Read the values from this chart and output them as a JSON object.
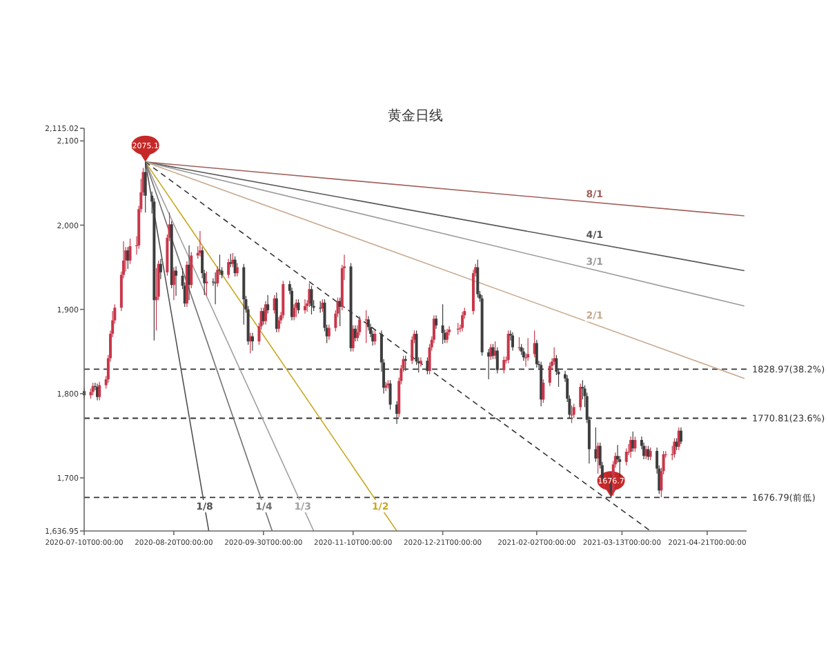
{
  "chart_data": {
    "type": "candlestick",
    "title": "黄金日线",
    "xlim": [
      "2020-07-10",
      "2021-05-09"
    ],
    "ylim": [
      1636.95,
      2115.02
    ],
    "xticks": [
      {
        "value": "2020-07-10",
        "label": "2020-07-10T00:00:00"
      },
      {
        "value": "2020-08-20",
        "label": "2020-08-20T00:00:00"
      },
      {
        "value": "2020-09-30",
        "label": "2020-09-30T00:00:00"
      },
      {
        "value": "2020-11-10",
        "label": "2020-11-10T00:00:00"
      },
      {
        "value": "2020-12-21",
        "label": "2020-12-21T00:00:00"
      },
      {
        "value": "2021-02-02",
        "label": "2021-02-02T00:00:00"
      },
      {
        "value": "2021-03-13",
        "label": "2021-03-13T00:00:00"
      },
      {
        "value": "2021-04-21",
        "label": "2021-04-21T00:00:00"
      }
    ],
    "yticks": [
      {
        "value": 1636.95,
        "label": "1,636.95"
      },
      {
        "value": 1700,
        "label": "1,700"
      },
      {
        "value": 1800,
        "label": "1,800"
      },
      {
        "value": 1900,
        "label": "1,900"
      },
      {
        "value": 2000,
        "label": "2,000"
      },
      {
        "value": 2100,
        "label": "2,100"
      },
      {
        "value": 2115.02,
        "label": "2,115.02"
      }
    ],
    "x": [
      "2020-07-10",
      "2020-07-13",
      "2020-07-14",
      "2020-07-15",
      "2020-07-16",
      "2020-07-17",
      "2020-07-20",
      "2020-07-21",
      "2020-07-22",
      "2020-07-23",
      "2020-07-24",
      "2020-07-27",
      "2020-07-28",
      "2020-07-29",
      "2020-07-30",
      "2020-07-31",
      "2020-08-03",
      "2020-08-04",
      "2020-08-05",
      "2020-08-06",
      "2020-08-07",
      "2020-08-10",
      "2020-08-11",
      "2020-08-12",
      "2020-08-13",
      "2020-08-14",
      "2020-08-17",
      "2020-08-18",
      "2020-08-19",
      "2020-08-20",
      "2020-08-21",
      "2020-08-24",
      "2020-08-25",
      "2020-08-26",
      "2020-08-27",
      "2020-08-28",
      "2020-08-31",
      "2020-09-01",
      "2020-09-02",
      "2020-09-03",
      "2020-09-04",
      "2020-09-07",
      "2020-09-08",
      "2020-09-09",
      "2020-09-10",
      "2020-09-11",
      "2020-09-14",
      "2020-09-15",
      "2020-09-16",
      "2020-09-17",
      "2020-09-18",
      "2020-09-21",
      "2020-09-22",
      "2020-09-23",
      "2020-09-24",
      "2020-09-25",
      "2020-09-28",
      "2020-09-29",
      "2020-09-30",
      "2020-10-01",
      "2020-10-02",
      "2020-10-05",
      "2020-10-06",
      "2020-10-07",
      "2020-10-08",
      "2020-10-09",
      "2020-10-12",
      "2020-10-13",
      "2020-10-14",
      "2020-10-15",
      "2020-10-16",
      "2020-10-19",
      "2020-10-20",
      "2020-10-21",
      "2020-10-22",
      "2020-10-23",
      "2020-10-26",
      "2020-10-27",
      "2020-10-28",
      "2020-10-29",
      "2020-10-30",
      "2020-11-02",
      "2020-11-03",
      "2020-11-04",
      "2020-11-05",
      "2020-11-06",
      "2020-11-09",
      "2020-11-10",
      "2020-11-11",
      "2020-11-12",
      "2020-11-13",
      "2020-11-16",
      "2020-11-17",
      "2020-11-18",
      "2020-11-19",
      "2020-11-20",
      "2020-11-23",
      "2020-11-24",
      "2020-11-25",
      "2020-11-26",
      "2020-11-27",
      "2020-11-30",
      "2020-12-01",
      "2020-12-02",
      "2020-12-03",
      "2020-12-04",
      "2020-12-07",
      "2020-12-08",
      "2020-12-09",
      "2020-12-10",
      "2020-12-11",
      "2020-12-14",
      "2020-12-15",
      "2020-12-16",
      "2020-12-17",
      "2020-12-18",
      "2020-12-21",
      "2020-12-22",
      "2020-12-23",
      "2020-12-24",
      "2020-12-28",
      "2020-12-29",
      "2020-12-30",
      "2020-12-31",
      "2021-01-04",
      "2021-01-05",
      "2021-01-06",
      "2021-01-07",
      "2021-01-08",
      "2021-01-11",
      "2021-01-12",
      "2021-01-13",
      "2021-01-14",
      "2021-01-15",
      "2021-01-18",
      "2021-01-19",
      "2021-01-20",
      "2021-01-21",
      "2021-01-22",
      "2021-01-25",
      "2021-01-26",
      "2021-01-27",
      "2021-01-28",
      "2021-01-29",
      "2021-02-01",
      "2021-02-02",
      "2021-02-03",
      "2021-02-04",
      "2021-02-05",
      "2021-02-08",
      "2021-02-09",
      "2021-02-10",
      "2021-02-11",
      "2021-02-12",
      "2021-02-15",
      "2021-02-16",
      "2021-02-17",
      "2021-02-18",
      "2021-02-19",
      "2021-02-22",
      "2021-02-23",
      "2021-02-24",
      "2021-02-25",
      "2021-02-26",
      "2021-03-01",
      "2021-03-02",
      "2021-03-03",
      "2021-03-04",
      "2021-03-05",
      "2021-03-08",
      "2021-03-09",
      "2021-03-10",
      "2021-03-11",
      "2021-03-12",
      "2021-03-15",
      "2021-03-16",
      "2021-03-17",
      "2021-03-18",
      "2021-03-19",
      "2021-03-22",
      "2021-03-23",
      "2021-03-24",
      "2021-03-25",
      "2021-03-26",
      "2021-03-29",
      "2021-03-30",
      "2021-03-31",
      "2021-04-01",
      "2021-04-02",
      "2021-04-05",
      "2021-04-06",
      "2021-04-07",
      "2021-04-08",
      "2021-04-09"
    ],
    "ohlc": [
      [
        1803,
        1807,
        1794,
        1798
      ],
      [
        1798,
        1806,
        1794,
        1802
      ],
      [
        1802,
        1813,
        1798,
        1809
      ],
      [
        1809,
        1813,
        1804,
        1808
      ],
      [
        1808,
        1812,
        1792,
        1796
      ],
      [
        1796,
        1814,
        1792,
        1810
      ],
      [
        1810,
        1821,
        1806,
        1817
      ],
      [
        1817,
        1846,
        1813,
        1842
      ],
      [
        1842,
        1875,
        1838,
        1871
      ],
      [
        1871,
        1898,
        1867,
        1887
      ],
      [
        1887,
        1906,
        1883,
        1902
      ],
      [
        1902,
        1945,
        1898,
        1941
      ],
      [
        1941,
        1981,
        1937,
        1958
      ],
      [
        1958,
        1974,
        1945,
        1970
      ],
      [
        1970,
        1974,
        1948,
        1958
      ],
      [
        1958,
        1984,
        1954,
        1975
      ],
      [
        1975,
        1987,
        1965,
        1976
      ],
      [
        1976,
        2023,
        1972,
        2019
      ],
      [
        2019,
        2055,
        2015,
        2039
      ],
      [
        2039,
        2068,
        2035,
        2063
      ],
      [
        2063,
        2075.14,
        2015,
        2035
      ],
      [
        2035,
        2040,
        2014,
        2028
      ],
      [
        2028,
        2032,
        1863,
        1911
      ],
      [
        1911,
        1949,
        1875,
        1915
      ],
      [
        1915,
        1958,
        1911,
        1954
      ],
      [
        1954,
        1960,
        1936,
        1944
      ],
      [
        1944,
        1989,
        1940,
        1985
      ],
      [
        1985,
        2015,
        1981,
        2001
      ],
      [
        2001,
        2005,
        1925,
        1929
      ],
      [
        1929,
        1950,
        1911,
        1946
      ],
      [
        1946,
        1951,
        1916,
        1940
      ],
      [
        1940,
        1949,
        1924,
        1928
      ],
      [
        1928,
        1932,
        1903,
        1907
      ],
      [
        1907,
        1957,
        1903,
        1953
      ],
      [
        1953,
        1976,
        1911,
        1929
      ],
      [
        1929,
        1968,
        1925,
        1964
      ],
      [
        1964,
        1975,
        1960,
        1967
      ],
      [
        1967,
        1993,
        1963,
        1970
      ],
      [
        1970,
        1974,
        1937,
        1943
      ],
      [
        1943,
        1947,
        1917,
        1931
      ],
      [
        1931,
        1945,
        1916,
        1933
      ],
      [
        1933,
        1937,
        1928,
        1932
      ],
      [
        1932,
        1944,
        1906,
        1931
      ],
      [
        1931,
        1951,
        1927,
        1947
      ],
      [
        1947,
        1965,
        1941,
        1946
      ],
      [
        1946,
        1950,
        1937,
        1941
      ],
      [
        1941,
        1960,
        1937,
        1956
      ],
      [
        1956,
        1966,
        1950,
        1954
      ],
      [
        1954,
        1967,
        1950,
        1959
      ],
      [
        1959,
        1963,
        1939,
        1943
      ],
      [
        1943,
        1955,
        1939,
        1950
      ],
      [
        1950,
        1954,
        1882,
        1912
      ],
      [
        1912,
        1916,
        1896,
        1900
      ],
      [
        1900,
        1904,
        1858,
        1862
      ],
      [
        1862,
        1872,
        1848,
        1868
      ],
      [
        1868,
        1872,
        1851,
        1862
      ],
      [
        1862,
        1884,
        1858,
        1880
      ],
      [
        1880,
        1902,
        1876,
        1898
      ],
      [
        1898,
        1902,
        1882,
        1886
      ],
      [
        1886,
        1910,
        1882,
        1906
      ],
      [
        1906,
        1917,
        1895,
        1899
      ],
      [
        1899,
        1917,
        1895,
        1913
      ],
      [
        1913,
        1920,
        1873,
        1877
      ],
      [
        1877,
        1891,
        1873,
        1887
      ],
      [
        1887,
        1897,
        1883,
        1893
      ],
      [
        1893,
        1934,
        1889,
        1930
      ],
      [
        1930,
        1934,
        1918,
        1922
      ],
      [
        1922,
        1926,
        1887,
        1891
      ],
      [
        1891,
        1906,
        1887,
        1902
      ],
      [
        1902,
        1912,
        1891,
        1908
      ],
      [
        1908,
        1912,
        1895,
        1899
      ],
      [
        1899,
        1912,
        1895,
        1904
      ],
      [
        1904,
        1911,
        1897,
        1907
      ],
      [
        1907,
        1931,
        1903,
        1924
      ],
      [
        1924,
        1928,
        1894,
        1904
      ],
      [
        1904,
        1911,
        1898,
        1902
      ],
      [
        1902,
        1910,
        1896,
        1901
      ],
      [
        1901,
        1912,
        1897,
        1908
      ],
      [
        1908,
        1912,
        1874,
        1878
      ],
      [
        1878,
        1882,
        1860,
        1868
      ],
      [
        1868,
        1882,
        1864,
        1878
      ],
      [
        1878,
        1899,
        1874,
        1895
      ],
      [
        1895,
        1914,
        1891,
        1910
      ],
      [
        1910,
        1914,
        1880,
        1903
      ],
      [
        1903,
        1953,
        1899,
        1949
      ],
      [
        1949,
        1965,
        1935,
        1951
      ],
      [
        1951,
        1955,
        1850,
        1854
      ],
      [
        1854,
        1881,
        1850,
        1877
      ],
      [
        1877,
        1881,
        1862,
        1866
      ],
      [
        1866,
        1881,
        1862,
        1873
      ],
      [
        1873,
        1892,
        1869,
        1888
      ],
      [
        1888,
        1899,
        1860,
        1888
      ],
      [
        1888,
        1892,
        1875,
        1879
      ],
      [
        1879,
        1883,
        1867,
        1871
      ],
      [
        1871,
        1875,
        1857,
        1862
      ],
      [
        1862,
        1875,
        1858,
        1871
      ],
      [
        1871,
        1875,
        1826,
        1837
      ],
      [
        1837,
        1841,
        1800,
        1807
      ],
      [
        1807,
        1814,
        1803,
        1810
      ],
      [
        1810,
        1816,
        1806,
        1812
      ],
      [
        1812,
        1816,
        1781,
        1787
      ],
      [
        1787,
        1791,
        1764,
        1776
      ],
      [
        1776,
        1819,
        1772,
        1815
      ],
      [
        1815,
        1834,
        1811,
        1830
      ],
      [
        1830,
        1845,
        1826,
        1841
      ],
      [
        1841,
        1845,
        1827,
        1839
      ],
      [
        1839,
        1868,
        1835,
        1864
      ],
      [
        1864,
        1875,
        1860,
        1871
      ],
      [
        1871,
        1875,
        1834,
        1838
      ],
      [
        1838,
        1843,
        1825,
        1836
      ],
      [
        1836,
        1843,
        1832,
        1839
      ],
      [
        1839,
        1843,
        1823,
        1827
      ],
      [
        1827,
        1859,
        1823,
        1855
      ],
      [
        1855,
        1868,
        1851,
        1864
      ],
      [
        1864,
        1893,
        1860,
        1889
      ],
      [
        1889,
        1893,
        1877,
        1881
      ],
      [
        1881,
        1906,
        1859,
        1872
      ],
      [
        1872,
        1876,
        1860,
        1864
      ],
      [
        1864,
        1877,
        1860,
        1873
      ],
      [
        1873,
        1880,
        1869,
        1876
      ],
      [
        1876,
        1884,
        1870,
        1877
      ],
      [
        1877,
        1882,
        1873,
        1878
      ],
      [
        1878,
        1897,
        1874,
        1893
      ],
      [
        1893,
        1902,
        1889,
        1898
      ],
      [
        1898,
        1947,
        1894,
        1943
      ],
      [
        1943,
        1954,
        1939,
        1950
      ],
      [
        1950,
        1959,
        1914,
        1918
      ],
      [
        1918,
        1922,
        1909,
        1913
      ],
      [
        1913,
        1917,
        1845,
        1849
      ],
      [
        1849,
        1853,
        1817,
        1844
      ],
      [
        1844,
        1859,
        1840,
        1855
      ],
      [
        1855,
        1859,
        1841,
        1845
      ],
      [
        1845,
        1862,
        1841,
        1851
      ],
      [
        1851,
        1855,
        1824,
        1828
      ],
      [
        1828,
        1844,
        1824,
        1840
      ],
      [
        1840,
        1844,
        1836,
        1840
      ],
      [
        1840,
        1875,
        1836,
        1871
      ],
      [
        1871,
        1875,
        1863,
        1869
      ],
      [
        1869,
        1873,
        1851,
        1855
      ],
      [
        1855,
        1867,
        1851,
        1855
      ],
      [
        1855,
        1859,
        1846,
        1850
      ],
      [
        1850,
        1854,
        1839,
        1843
      ],
      [
        1843,
        1848,
        1832,
        1843
      ],
      [
        1843,
        1866,
        1839,
        1847
      ],
      [
        1847,
        1875,
        1843,
        1860
      ],
      [
        1860,
        1864,
        1831,
        1835
      ],
      [
        1835,
        1839,
        1830,
        1834
      ],
      [
        1834,
        1838,
        1785,
        1793
      ],
      [
        1793,
        1817,
        1789,
        1813
      ],
      [
        1813,
        1837,
        1809,
        1833
      ],
      [
        1833,
        1842,
        1829,
        1838
      ],
      [
        1838,
        1855,
        1834,
        1842
      ],
      [
        1842,
        1846,
        1822,
        1826
      ],
      [
        1826,
        1830,
        1808,
        1823
      ],
      [
        1823,
        1827,
        1814,
        1818
      ],
      [
        1818,
        1822,
        1790,
        1794
      ],
      [
        1794,
        1798,
        1771,
        1775
      ],
      [
        1775,
        1786,
        1765,
        1775
      ],
      [
        1775,
        1788,
        1771,
        1784
      ],
      [
        1784,
        1812,
        1780,
        1808
      ],
      [
        1808,
        1816,
        1793,
        1806
      ],
      [
        1806,
        1810,
        1784,
        1797
      ],
      [
        1797,
        1801,
        1765,
        1769
      ],
      [
        1769,
        1773,
        1717,
        1734
      ],
      [
        1734,
        1760,
        1719,
        1723
      ],
      [
        1723,
        1742,
        1705,
        1738
      ],
      [
        1738,
        1742,
        1711,
        1715
      ],
      [
        1715,
        1719,
        1694,
        1698
      ],
      [
        1698,
        1704,
        1687,
        1700
      ],
      [
        1700,
        1704,
        1676.79,
        1683
      ],
      [
        1683,
        1720,
        1679,
        1716
      ],
      [
        1716,
        1730,
        1712,
        1726
      ],
      [
        1726,
        1739,
        1718,
        1722
      ],
      [
        1722,
        1726,
        1699,
        1719
      ],
      [
        1719,
        1735,
        1715,
        1731
      ],
      [
        1731,
        1740,
        1727,
        1731
      ],
      [
        1731,
        1749,
        1724,
        1745
      ],
      [
        1745,
        1755,
        1731,
        1735
      ],
      [
        1735,
        1749,
        1731,
        1745
      ],
      [
        1745,
        1749,
        1734,
        1738
      ],
      [
        1738,
        1742,
        1722,
        1726
      ],
      [
        1726,
        1738,
        1722,
        1734
      ],
      [
        1734,
        1738,
        1721,
        1725
      ],
      [
        1725,
        1736,
        1721,
        1732
      ],
      [
        1732,
        1736,
        1705,
        1711
      ],
      [
        1711,
        1715,
        1681,
        1685
      ],
      [
        1685,
        1712,
        1677,
        1708
      ],
      [
        1708,
        1732,
        1704,
        1728
      ],
      [
        1728,
        1732,
        1724,
        1728
      ],
      [
        1728,
        1738,
        1721,
        1728
      ],
      [
        1728,
        1747,
        1724,
        1743
      ],
      [
        1743,
        1747,
        1733,
        1737
      ],
      [
        1737,
        1760,
        1733,
        1756
      ],
      [
        1756,
        1760,
        1740,
        1743
      ]
    ],
    "colors": [
      "#3d3d3d",
      "#c8374a",
      "#c8374a",
      "#3d3d3d",
      "#3d3d3d",
      "#c8374a",
      "#c8374a",
      "#c8374a",
      "#c8374a",
      "#c8374a",
      "#c8374a",
      "#c8374a",
      "#c8374a",
      "#c8374a",
      "#3d3d3d",
      "#c8374a",
      "#c8374a",
      "#c8374a",
      "#c8374a",
      "#c8374a",
      "#3d3d3d",
      "#3d3d3d",
      "#3d3d3d",
      "#c8374a",
      "#c8374a",
      "#3d3d3d",
      "#c8374a",
      "#c8374a",
      "#3d3d3d",
      "#c8374a",
      "#3d3d3d",
      "#3d3d3d",
      "#3d3d3d",
      "#c8374a",
      "#3d3d3d",
      "#c8374a",
      "#c8374a",
      "#c8374a",
      "#3d3d3d",
      "#3d3d3d",
      "#c8374a",
      "#3d3d3d",
      "#3d3d3d",
      "#c8374a",
      "#3d3d3d",
      "#3d3d3d",
      "#c8374a",
      "#3d3d3d",
      "#c8374a",
      "#3d3d3d",
      "#c8374a",
      "#3d3d3d",
      "#3d3d3d",
      "#3d3d3d",
      "#c8374a",
      "#3d3d3d",
      "#c8374a",
      "#c8374a",
      "#3d3d3d",
      "#c8374a",
      "#3d3d3d",
      "#c8374a",
      "#3d3d3d",
      "#c8374a",
      "#c8374a",
      "#c8374a",
      "#3d3d3d",
      "#3d3d3d",
      "#c8374a",
      "#c8374a",
      "#3d3d3d",
      "#c8374a",
      "#c8374a",
      "#c8374a",
      "#3d3d3d",
      "#3d3d3d",
      "#3d3d3d",
      "#c8374a",
      "#3d3d3d",
      "#3d3d3d",
      "#c8374a",
      "#c8374a",
      "#c8374a",
      "#3d3d3d",
      "#c8374a",
      "#c8374a",
      "#3d3d3d",
      "#c8374a",
      "#3d3d3d",
      "#c8374a",
      "#c8374a",
      "#c8374a",
      "#3d3d3d",
      "#3d3d3d",
      "#3d3d3d",
      "#c8374a",
      "#3d3d3d",
      "#3d3d3d",
      "#c8374a",
      "#c8374a",
      "#3d3d3d",
      "#3d3d3d",
      "#c8374a",
      "#c8374a",
      "#c8374a",
      "#3d3d3d",
      "#c8374a",
      "#c8374a",
      "#3d3d3d",
      "#3d3d3d",
      "#c8374a",
      "#3d3d3d",
      "#c8374a",
      "#c8374a",
      "#c8374a",
      "#3d3d3d",
      "#3d3d3d",
      "#3d3d3d",
      "#c8374a",
      "#c8374a",
      "#c8374a",
      "#c8374a",
      "#c8374a",
      "#c8374a",
      "#c8374a",
      "#c8374a",
      "#3d3d3d",
      "#3d3d3d",
      "#3d3d3d",
      "#3d3d3d",
      "#c8374a",
      "#3d3d3d",
      "#c8374a",
      "#3d3d3d",
      "#c8374a",
      "#c8374a",
      "#c8374a",
      "#3d3d3d",
      "#3d3d3d",
      "#c8374a",
      "#3d3d3d",
      "#3d3d3d",
      "#c8374a",
      "#c8374a",
      "#c8374a",
      "#3d3d3d",
      "#3d3d3d",
      "#3d3d3d",
      "#c8374a",
      "#c8374a",
      "#c8374a",
      "#c8374a",
      "#3d3d3d",
      "#3d3d3d",
      "#3d3d3d",
      "#3d3d3d",
      "#3d3d3d",
      "#c8374a",
      "#c8374a",
      "#c8374a",
      "#3d3d3d",
      "#3d3d3d",
      "#3d3d3d",
      "#3d3d3d",
      "#3d3d3d",
      "#c8374a",
      "#3d3d3d",
      "#3d3d3d",
      "#c8374a",
      "#3d3d3d",
      "#c8374a",
      "#c8374a",
      "#3d3d3d",
      "#3d3d3d",
      "#c8374a",
      "#c8374a",
      "#c8374a",
      "#3d3d3d",
      "#c8374a",
      "#3d3d3d",
      "#3d3d3d",
      "#c8374a",
      "#3d3d3d",
      "#c8374a",
      "#3d3d3d",
      "#3d3d3d",
      "#c8374a",
      "#c8374a",
      "#c8374a",
      "#c8374a",
      "#c8374a",
      "#3d3d3d",
      "#c8374a",
      "#3d3d3d"
    ],
    "series": [
      {
        "type": "line",
        "name": "8/1",
        "color": "#a0605a",
        "x": [
          "2020-08-07",
          "2021-05-08"
        ],
        "values": [
          2075,
          2011
        ]
      },
      {
        "type": "line",
        "name": "4/1",
        "color": "#555555",
        "x": [
          "2020-08-07",
          "2021-05-08"
        ],
        "values": [
          2075,
          1946
        ]
      },
      {
        "type": "line",
        "name": "3/1",
        "color": "#9a9a9a",
        "x": [
          "2020-08-07",
          "2021-05-08"
        ],
        "values": [
          2075,
          1904
        ]
      },
      {
        "type": "line",
        "name": "2/1",
        "color": "#c8a88c",
        "x": [
          "2020-08-07",
          "2021-05-08"
        ],
        "values": [
          2075,
          1818
        ]
      },
      {
        "type": "line",
        "color": "#333333",
        "line_style": "dashed",
        "x": [
          "2020-08-07",
          "2021-03-26"
        ],
        "values": [
          2075,
          1636.95
        ]
      },
      {
        "type": "line",
        "name": "1/2",
        "color": "#c8a820",
        "x": [
          "2020-08-07",
          "2020-11-30"
        ],
        "values": [
          2075,
          1636.95
        ]
      },
      {
        "type": "line",
        "name": "1/3",
        "color": "#a0a0a0",
        "x": [
          "2020-08-07",
          "2020-10-23"
        ],
        "values": [
          2075,
          1636.95
        ]
      },
      {
        "type": "line",
        "name": "1/4",
        "color": "#707070",
        "x": [
          "2020-08-07",
          "2020-10-04"
        ],
        "values": [
          2075,
          1636.95
        ]
      },
      {
        "type": "line",
        "name": "1/8",
        "color": "#505050",
        "x": [
          "2020-08-07",
          "2020-09-05"
        ],
        "values": [
          2075,
          1636.95
        ]
      }
    ],
    "ref_lines": [
      {
        "axis": "y",
        "value": 1828.97,
        "label": "1828.97(38.2%)",
        "color": "#333333",
        "line_style": "dashed"
      },
      {
        "axis": "y",
        "value": 1770.81,
        "label": "1770.81(23.6%)",
        "color": "#333333",
        "line_style": "dashed"
      },
      {
        "axis": "y",
        "value": 1676.79,
        "label": "1676.79(前低)",
        "color": "#333333",
        "line_style": "dashed"
      }
    ],
    "annotations": [
      {
        "text": "2075.1",
        "x": "2020-08-07",
        "y": 2075.14
      },
      {
        "text": "1676.7",
        "x": "2021-03-08",
        "y": 1676.79
      }
    ]
  }
}
